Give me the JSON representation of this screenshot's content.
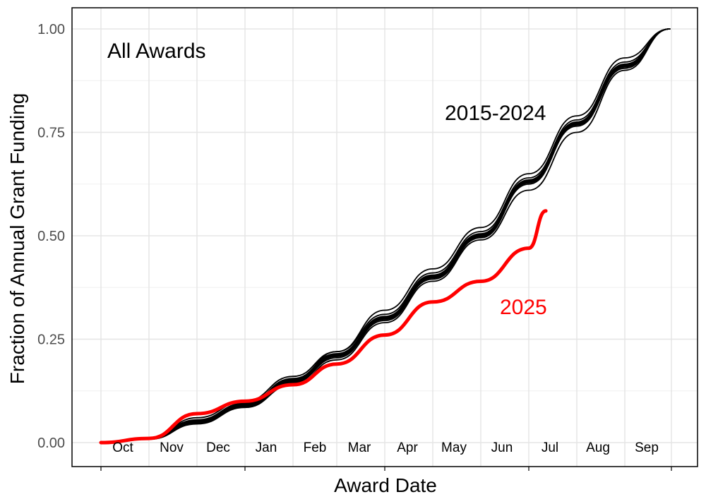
{
  "chart_data": {
    "type": "line",
    "title": "",
    "xlabel": "Award Date",
    "ylabel": "Fraction of Annual Grant Funding",
    "x_ticks": [
      "Oct",
      "Nov",
      "Dec",
      "Jan",
      "Feb",
      "Mar",
      "Apr",
      "May",
      "Jun",
      "Jul",
      "Aug",
      "Sep"
    ],
    "y_ticks": [
      "0.00",
      "0.25",
      "0.50",
      "0.75",
      "1.00"
    ],
    "ylim": [
      -0.06,
      1.05
    ],
    "grid": true,
    "legend": "none",
    "annotations": {
      "panel_label": "All Awards",
      "history_label": "2015-2024",
      "current_label": "2025"
    },
    "colors": {
      "history": "#000000",
      "current": "#ff0000",
      "grid": "#e5e5e5",
      "axis": "#000000"
    },
    "series": [
      {
        "group": "history",
        "x": [
          "Oct 1",
          "Nov 1",
          "Dec 1",
          "Jan 1",
          "Feb 1",
          "Mar 1",
          "Apr 1",
          "May 1",
          "Jun 1",
          "Jul 1",
          "Aug 1",
          "Sep 1",
          "Sep 30"
        ],
        "values": [
          0.0,
          0.01,
          0.05,
          0.09,
          0.15,
          0.21,
          0.3,
          0.4,
          0.5,
          0.63,
          0.77,
          0.91,
          1.0
        ]
      },
      {
        "group": "history",
        "x": [
          "Oct 1",
          "Nov 1",
          "Dec 1",
          "Jan 1",
          "Feb 1",
          "Mar 1",
          "Apr 1",
          "May 1",
          "Jun 1",
          "Jul 1",
          "Aug 1",
          "Sep 1",
          "Sep 30"
        ],
        "values": [
          0.0,
          0.01,
          0.06,
          0.1,
          0.16,
          0.22,
          0.31,
          0.41,
          0.51,
          0.64,
          0.78,
          0.92,
          1.0
        ]
      },
      {
        "group": "history",
        "x": [
          "Oct 1",
          "Nov 1",
          "Dec 1",
          "Jan 1",
          "Feb 1",
          "Mar 1",
          "Apr 1",
          "May 1",
          "Jun 1",
          "Jul 1",
          "Aug 1",
          "Sep 1",
          "Sep 30"
        ],
        "values": [
          0.0,
          0.008,
          0.045,
          0.085,
          0.14,
          0.2,
          0.29,
          0.39,
          0.49,
          0.61,
          0.75,
          0.9,
          1.0
        ]
      },
      {
        "group": "history",
        "x": [
          "Oct 1",
          "Nov 1",
          "Dec 1",
          "Jan 1",
          "Feb 1",
          "Mar 1",
          "Apr 1",
          "May 1",
          "Jun 1",
          "Jul 1",
          "Aug 1",
          "Sep 1",
          "Sep 30"
        ],
        "values": [
          0.0,
          0.012,
          0.055,
          0.095,
          0.155,
          0.215,
          0.305,
          0.405,
          0.505,
          0.635,
          0.775,
          0.915,
          1.0
        ]
      },
      {
        "group": "history",
        "x": [
          "Oct 1",
          "Nov 1",
          "Dec 1",
          "Jan 1",
          "Feb 1",
          "Mar 1",
          "Apr 1",
          "May 1",
          "Jun 1",
          "Jul 1",
          "Aug 1",
          "Sep 1",
          "Sep 30"
        ],
        "values": [
          0.0,
          0.01,
          0.05,
          0.09,
          0.15,
          0.22,
          0.32,
          0.42,
          0.52,
          0.65,
          0.79,
          0.93,
          1.0
        ]
      },
      {
        "group": "history",
        "x": [
          "Oct 1",
          "Nov 1",
          "Dec 1",
          "Jan 1",
          "Feb 1",
          "Mar 1",
          "Apr 1",
          "May 1",
          "Jun 1",
          "Jul 1",
          "Aug 1",
          "Sep 1",
          "Sep 30"
        ],
        "values": [
          0.0,
          0.009,
          0.048,
          0.088,
          0.145,
          0.205,
          0.295,
          0.395,
          0.495,
          0.625,
          0.765,
          0.905,
          1.0
        ]
      },
      {
        "group": "history",
        "x": [
          "Oct 1",
          "Nov 1",
          "Dec 1",
          "Jan 1",
          "Feb 1",
          "Mar 1",
          "Apr 1",
          "May 1",
          "Jun 1",
          "Jul 1",
          "Aug 1",
          "Sep 1",
          "Sep 30"
        ],
        "values": [
          0.0,
          0.011,
          0.052,
          0.092,
          0.152,
          0.212,
          0.302,
          0.402,
          0.502,
          0.632,
          0.772,
          0.912,
          1.0
        ]
      },
      {
        "group": "history",
        "x": [
          "Oct 1",
          "Nov 1",
          "Dec 1",
          "Jan 1",
          "Feb 1",
          "Mar 1",
          "Apr 1",
          "May 1",
          "Jun 1",
          "Jul 1",
          "Aug 1",
          "Sep 1",
          "Sep 30"
        ],
        "values": [
          0.0,
          0.01,
          0.047,
          0.087,
          0.147,
          0.208,
          0.298,
          0.398,
          0.498,
          0.628,
          0.768,
          0.908,
          1.0
        ]
      },
      {
        "group": "history",
        "x": [
          "Oct 1",
          "Nov 1",
          "Dec 1",
          "Jan 1",
          "Feb 1",
          "Mar 1",
          "Apr 1",
          "May 1",
          "Jun 1",
          "Jul 1",
          "Aug 1",
          "Sep 1",
          "Sep 30"
        ],
        "values": [
          0.0,
          0.011,
          0.053,
          0.093,
          0.153,
          0.213,
          0.303,
          0.403,
          0.503,
          0.633,
          0.773,
          0.913,
          1.0
        ]
      },
      {
        "group": "history",
        "x": [
          "Oct 1",
          "Nov 1",
          "Dec 1",
          "Jan 1",
          "Feb 1",
          "Mar 1",
          "Apr 1",
          "May 1",
          "Jun 1",
          "Jul 1",
          "Aug 1",
          "Sep 1",
          "Sep 30"
        ],
        "values": [
          0.0,
          0.009,
          0.049,
          0.089,
          0.149,
          0.209,
          0.299,
          0.399,
          0.499,
          0.629,
          0.769,
          0.909,
          1.0
        ]
      },
      {
        "group": "current",
        "x": [
          "Oct 1",
          "Nov 1",
          "Dec 1",
          "Jan 1",
          "Feb 1",
          "Mar 1",
          "Apr 1",
          "May 1",
          "Jun 1",
          "Jul 1",
          "Jul 12"
        ],
        "values": [
          0.0,
          0.01,
          0.07,
          0.1,
          0.14,
          0.19,
          0.26,
          0.34,
          0.39,
          0.47,
          0.56
        ]
      }
    ]
  }
}
